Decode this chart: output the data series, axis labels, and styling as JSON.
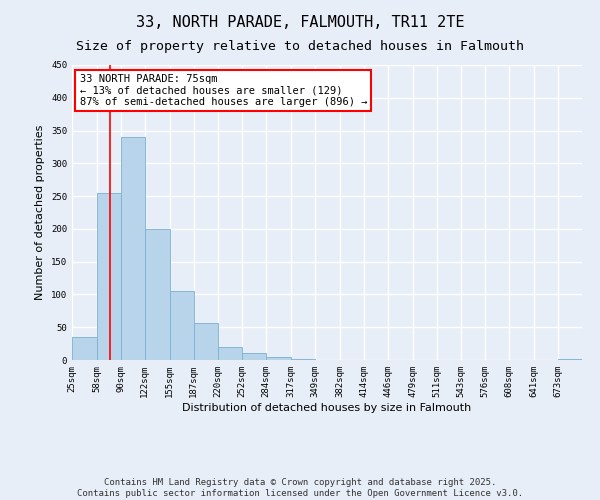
{
  "title": "33, NORTH PARADE, FALMOUTH, TR11 2TE",
  "subtitle": "Size of property relative to detached houses in Falmouth",
  "xlabel": "Distribution of detached houses by size in Falmouth",
  "ylabel": "Number of detached properties",
  "bar_color": "#b8d4ea",
  "bar_edge_color": "#7ab0d4",
  "vline_color": "red",
  "vline_x": 75,
  "annotation_title": "33 NORTH PARADE: 75sqm",
  "annotation_line1": "← 13% of detached houses are smaller (129)",
  "annotation_line2": "87% of semi-detached houses are larger (896) →",
  "bin_edges": [
    25,
    58,
    90,
    122,
    155,
    187,
    220,
    252,
    284,
    317,
    349,
    382,
    414,
    446,
    479,
    511,
    543,
    576,
    608,
    641,
    673,
    705
  ],
  "bar_heights": [
    35,
    255,
    340,
    200,
    105,
    57,
    20,
    10,
    5,
    2,
    0,
    0,
    0,
    0,
    0,
    0,
    0,
    0,
    0,
    0,
    2
  ],
  "ylim": [
    0,
    450
  ],
  "yticks": [
    0,
    50,
    100,
    150,
    200,
    250,
    300,
    350,
    400,
    450
  ],
  "tick_labels": [
    "25sqm",
    "58sqm",
    "90sqm",
    "122sqm",
    "155sqm",
    "187sqm",
    "220sqm",
    "252sqm",
    "284sqm",
    "317sqm",
    "349sqm",
    "382sqm",
    "414sqm",
    "446sqm",
    "479sqm",
    "511sqm",
    "543sqm",
    "576sqm",
    "608sqm",
    "641sqm",
    "673sqm"
  ],
  "footer1": "Contains HM Land Registry data © Crown copyright and database right 2025.",
  "footer2": "Contains public sector information licensed under the Open Government Licence v3.0.",
  "background_color": "#e8eef8",
  "grid_color": "white",
  "title_fontsize": 11,
  "subtitle_fontsize": 9.5,
  "axis_label_fontsize": 8,
  "tick_fontsize": 6.5,
  "annotation_fontsize": 7.5,
  "footer_fontsize": 6.5
}
